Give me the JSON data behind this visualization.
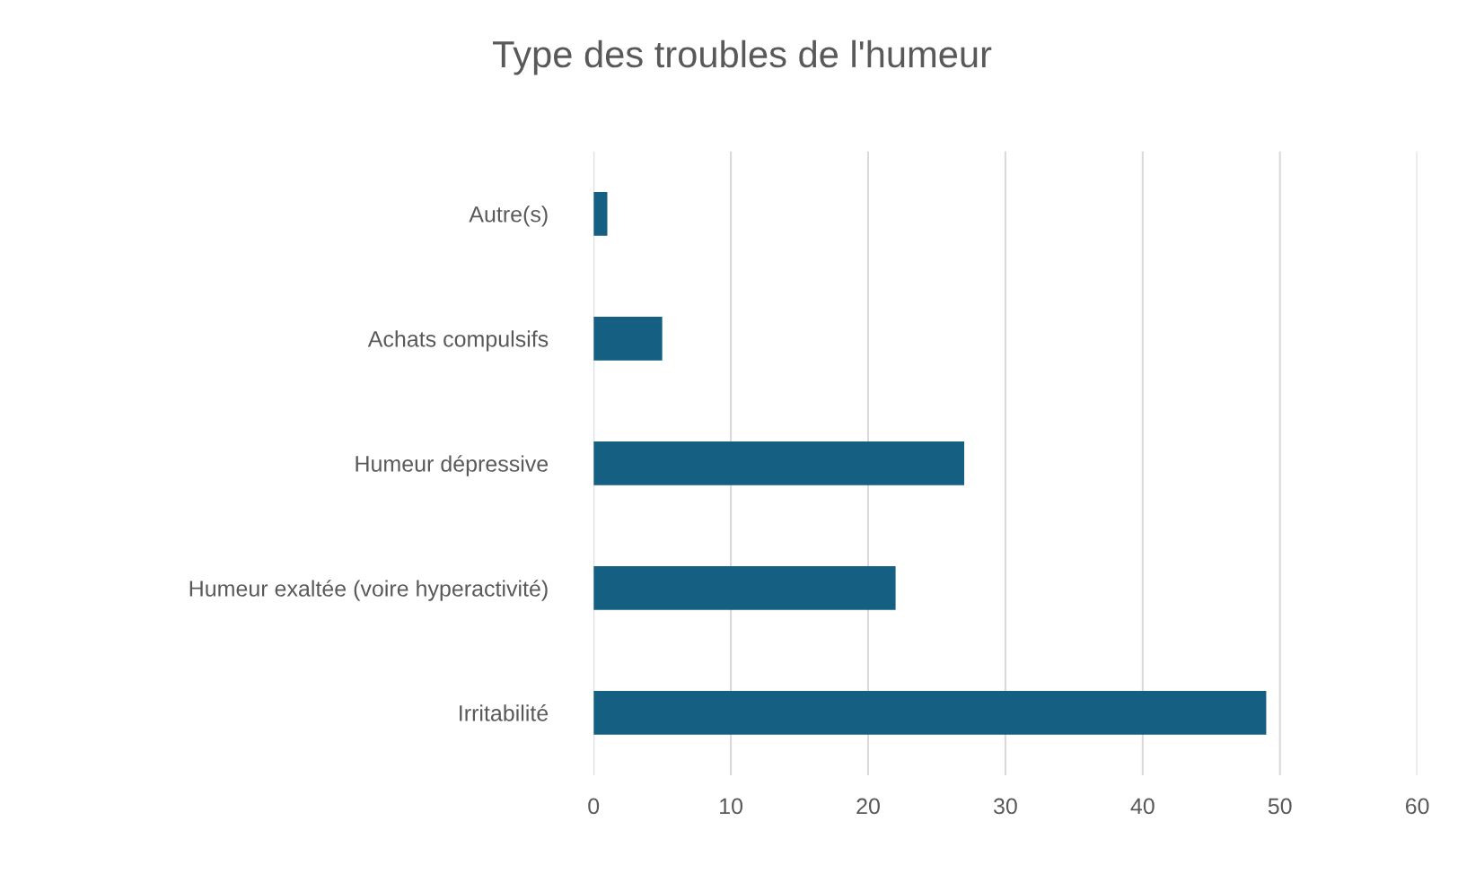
{
  "chart_data": {
    "type": "bar",
    "orientation": "horizontal",
    "title": "Type des troubles de l'humeur",
    "categories": [
      "Autre(s)",
      "Achats compulsifs",
      "Humeur dépressive",
      "Humeur exaltée (voire hyperactivité)",
      "Irritabilité"
    ],
    "values": [
      1,
      5,
      27,
      22,
      49
    ],
    "color": "#156082",
    "xlim": [
      0,
      60
    ],
    "xticks": [
      0,
      10,
      20,
      30,
      40,
      50,
      60
    ],
    "grid": "x",
    "legend": false
  }
}
